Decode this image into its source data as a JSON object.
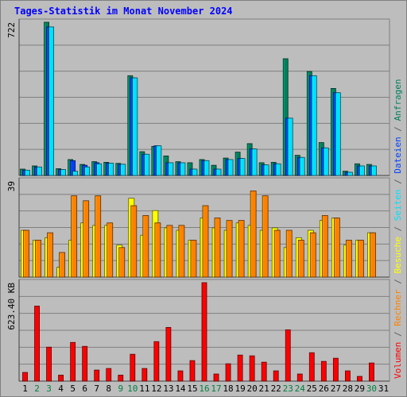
{
  "chart_data": {
    "type": "bar",
    "title": "Tages-Statistik im Monat November 2024",
    "categories": [
      "1",
      "2",
      "3",
      "4",
      "5",
      "6",
      "7",
      "8",
      "9",
      "10",
      "11",
      "12",
      "13",
      "14",
      "15",
      "16",
      "17",
      "18",
      "19",
      "20",
      "21",
      "22",
      "23",
      "24",
      "25",
      "26",
      "27",
      "28",
      "29",
      "30",
      "31"
    ],
    "weekend_days": [
      "2",
      "3",
      "9",
      "10",
      "16",
      "17",
      "23",
      "24",
      "30"
    ],
    "panels": [
      {
        "id": "requests",
        "scale_label": "722",
        "ylim": [
          0,
          722
        ],
        "series": [
          {
            "name": "Anfragen",
            "color": "#00805c",
            "values": [
              30,
              45,
              722,
              32,
              75,
              52,
              65,
              62,
              57,
              470,
              112,
              137,
              92,
              65,
              60,
              75,
              48,
              82,
              110,
              150,
              60,
              62,
              550,
              95,
              490,
              155,
              410,
              20,
              55,
              52,
              0
            ]
          },
          {
            "name": "Dateien",
            "color": "#0040ff",
            "values": [
              25,
              40,
              700,
              28,
              70,
              48,
              60,
              58,
              53,
              460,
              100,
              140,
              60,
              60,
              30,
              70,
              30,
              75,
              80,
              125,
              50,
              55,
              270,
              85,
              470,
              130,
              390,
              15,
              45,
              45,
              0
            ]
          },
          {
            "name": "Seiten",
            "color": "#00e0ff",
            "values": [
              25,
              40,
              700,
              28,
              20,
              40,
              55,
              58,
              53,
              460,
              100,
              140,
              60,
              60,
              30,
              70,
              30,
              75,
              80,
              125,
              50,
              55,
              270,
              85,
              470,
              130,
              390,
              15,
              45,
              45,
              0
            ]
          }
        ]
      },
      {
        "id": "visits",
        "scale_label": "39",
        "ylim": [
          0,
          39
        ],
        "series": [
          {
            "name": "Besuche",
            "color": "#ffff00",
            "values": [
              19,
              15,
              16,
              4,
              15,
              22,
              21,
              21,
              13,
              32,
              17,
              27,
              20,
              19,
              15,
              24,
              20,
              19,
              22,
              21,
              19,
              20,
              12,
              16,
              19,
              23,
              24,
              13,
              15,
              18,
              0
            ]
          },
          {
            "name": "Rechner",
            "color": "#ff8000",
            "values": [
              19,
              15,
              18,
              10,
              33,
              31,
              33,
              22,
              12,
              29,
              25,
              22,
              21,
              21,
              15,
              29,
              24,
              23,
              23,
              35,
              33,
              19,
              19,
              15,
              18,
              25,
              24,
              15,
              15,
              18,
              0
            ]
          }
        ]
      },
      {
        "id": "volume",
        "scale_label": "623.40 KB",
        "ylim": [
          0,
          623.4
        ],
        "series": [
          {
            "name": "Volumen",
            "color": "#ff0000",
            "values": [
              55,
              475,
              215,
              38,
              245,
              220,
              70,
              80,
              38,
              170,
              80,
              250,
              340,
              65,
              130,
              623.4,
              45,
              110,
              165,
              160,
              120,
              65,
              325,
              45,
              180,
              125,
              145,
              65,
              30,
              115,
              0
            ]
          }
        ]
      }
    ],
    "right_legend": [
      {
        "text": "Volumen",
        "color": "#ff0000"
      },
      {
        "text": "Rechner",
        "color": "#ff8000"
      },
      {
        "text": "Besuche",
        "color": "#ffff00"
      },
      {
        "text": "Seiten",
        "color": "#00e0ff"
      },
      {
        "text": "Dateien",
        "color": "#0040ff"
      },
      {
        "text": "Anfragen",
        "color": "#00805c"
      }
    ],
    "separator": " / ",
    "separator_color": "#606060",
    "grid": true,
    "colors": {
      "background": "#bdbdbd",
      "gridline": "#808080",
      "weekday_label": "#000000",
      "weekend_label": "#008040"
    }
  }
}
